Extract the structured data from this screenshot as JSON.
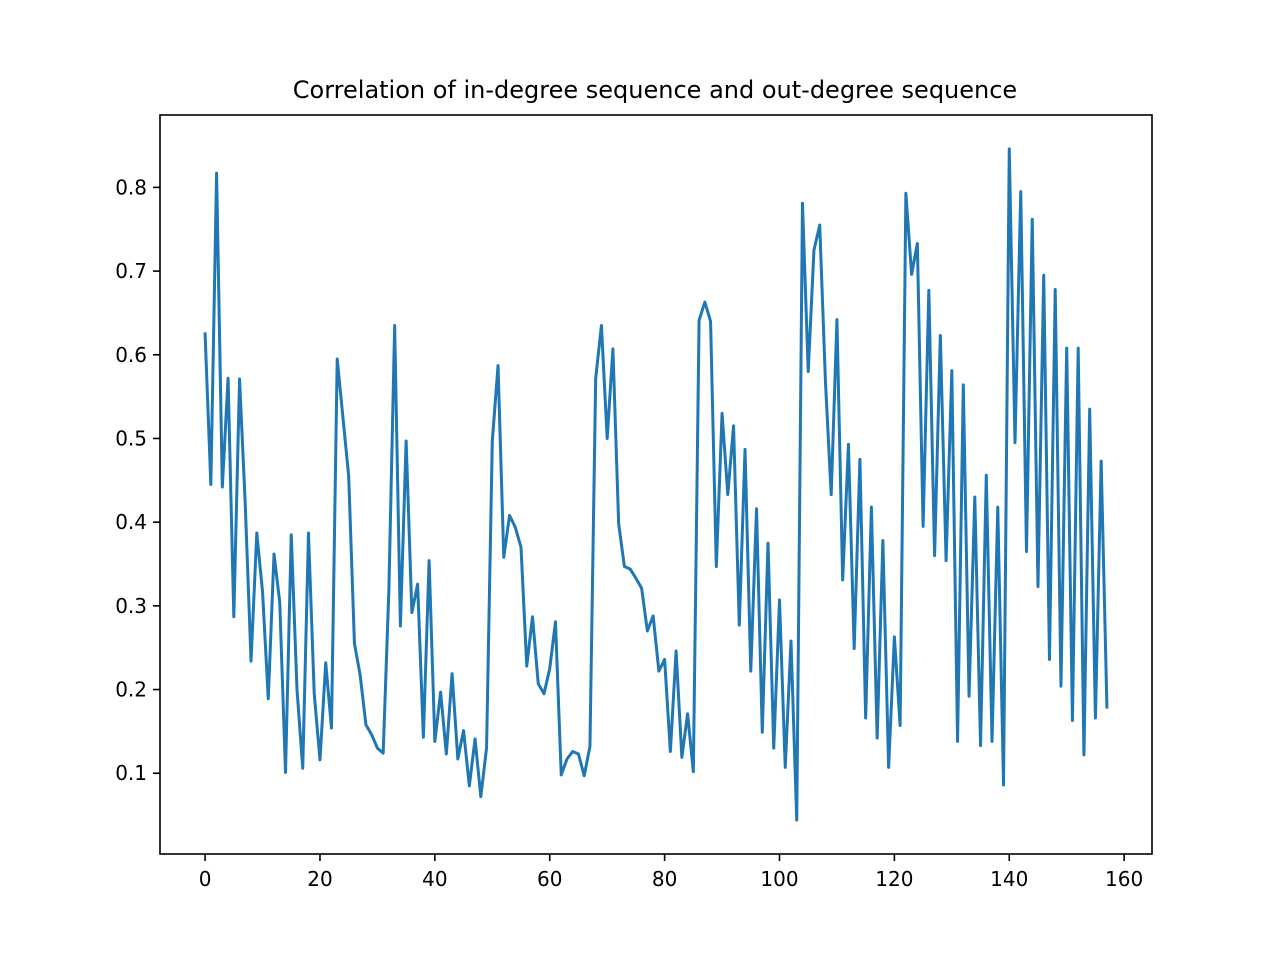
{
  "chart_data": {
    "type": "line",
    "title": "Correlation of in-degree sequence and out-degree sequence",
    "xlabel": "",
    "ylabel": "",
    "xlim": [
      -7.85,
      164.85
    ],
    "ylim": [
      0.0035,
      0.8865
    ],
    "grid": false,
    "legend": null,
    "x_ticks": [
      0,
      20,
      40,
      60,
      80,
      100,
      120,
      140,
      160
    ],
    "y_ticks": [
      0.1,
      0.2,
      0.3,
      0.4,
      0.5,
      0.6,
      0.7,
      0.8
    ],
    "y_tick_labels": [
      "0.1",
      "0.2",
      "0.3",
      "0.4",
      "0.5",
      "0.6",
      "0.7",
      "0.8"
    ],
    "series": [
      {
        "name": "correlation",
        "color": "#1f77b4",
        "x_start": 0,
        "values": [
          0.625,
          0.445,
          0.817,
          0.442,
          0.572,
          0.287,
          0.571,
          0.42,
          0.234,
          0.387,
          0.317,
          0.189,
          0.362,
          0.304,
          0.101,
          0.385,
          0.2,
          0.106,
          0.387,
          0.195,
          0.116,
          0.232,
          0.154,
          0.595,
          0.525,
          0.455,
          0.255,
          0.217,
          0.158,
          0.146,
          0.13,
          0.124,
          0.32,
          0.635,
          0.276,
          0.497,
          0.292,
          0.326,
          0.143,
          0.354,
          0.138,
          0.197,
          0.123,
          0.219,
          0.117,
          0.151,
          0.085,
          0.141,
          0.072,
          0.13,
          0.497,
          0.587,
          0.358,
          0.408,
          0.394,
          0.37,
          0.228,
          0.287,
          0.207,
          0.195,
          0.225,
          0.281,
          0.098,
          0.117,
          0.126,
          0.123,
          0.097,
          0.132,
          0.572,
          0.635,
          0.5,
          0.607,
          0.398,
          0.347,
          0.344,
          0.333,
          0.321,
          0.27,
          0.288,
          0.222,
          0.236,
          0.126,
          0.246,
          0.119,
          0.171,
          0.102,
          0.641,
          0.663,
          0.64,
          0.347,
          0.53,
          0.433,
          0.515,
          0.277,
          0.487,
          0.222,
          0.416,
          0.149,
          0.375,
          0.13,
          0.307,
          0.107,
          0.258,
          0.044,
          0.781,
          0.58,
          0.725,
          0.755,
          0.568,
          0.433,
          0.642,
          0.331,
          0.493,
          0.249,
          0.475,
          0.166,
          0.418,
          0.142,
          0.378,
          0.107,
          0.263,
          0.157,
          0.793,
          0.696,
          0.733,
          0.395,
          0.677,
          0.36,
          0.623,
          0.354,
          0.581,
          0.138,
          0.564,
          0.192,
          0.43,
          0.133,
          0.456,
          0.138,
          0.418,
          0.086,
          0.846,
          0.495,
          0.795,
          0.365,
          0.762,
          0.323,
          0.695,
          0.236,
          0.678,
          0.204,
          0.608,
          0.163,
          0.608,
          0.122,
          0.535,
          0.166,
          0.473,
          0.179
        ]
      }
    ]
  }
}
